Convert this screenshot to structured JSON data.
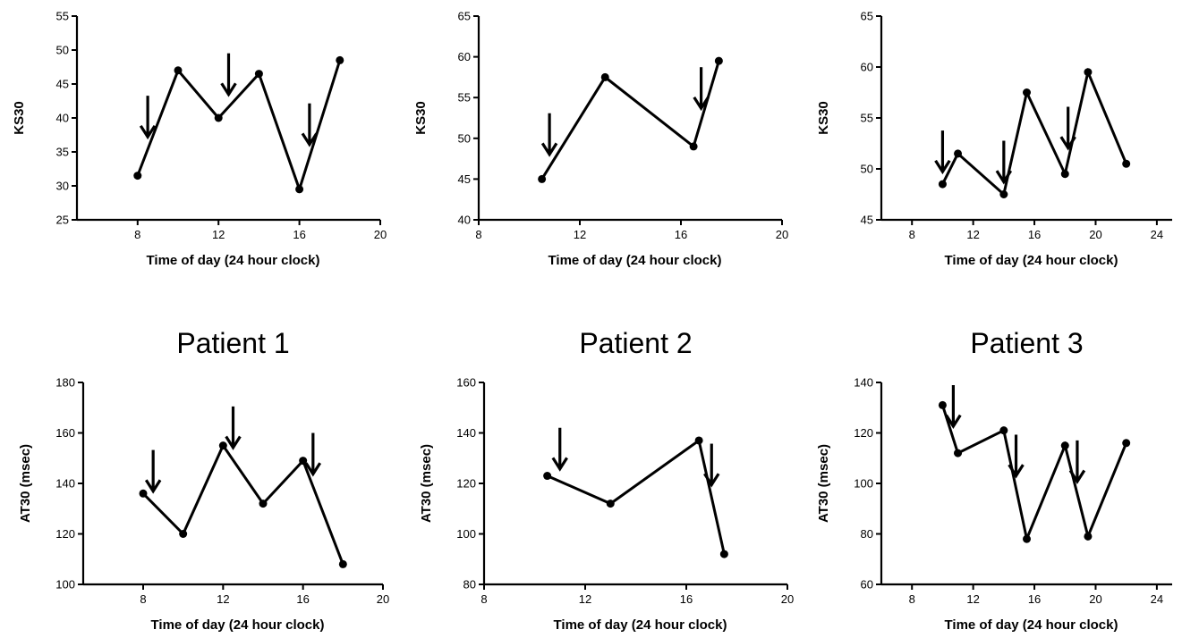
{
  "chart_data": [
    {
      "type": "line",
      "title": "",
      "xlabel": "Time of day (24 hour clock)",
      "ylabel": "KS30",
      "xlim": [
        5,
        20
      ],
      "ylim": [
        25,
        55
      ],
      "xticks": [
        8,
        12,
        16,
        20
      ],
      "yticks": [
        25,
        30,
        35,
        40,
        45,
        50,
        55
      ],
      "x": [
        8,
        10,
        12,
        14,
        16,
        18
      ],
      "y": [
        31.5,
        47,
        40,
        46.5,
        29.5,
        48.5
      ],
      "arrows_at_x": [
        8.5,
        12.5,
        16.5
      ]
    },
    {
      "type": "line",
      "title": "",
      "xlabel": "Time of day (24 hour clock)",
      "ylabel": "KS30",
      "xlim": [
        8,
        20
      ],
      "ylim": [
        40,
        65
      ],
      "xticks": [
        8,
        12,
        16,
        20
      ],
      "yticks": [
        40,
        45,
        50,
        55,
        60,
        65
      ],
      "x": [
        10.5,
        13,
        16.5,
        17.5
      ],
      "y": [
        45,
        57.5,
        49,
        59.5
      ],
      "arrows_at_x": [
        10.8,
        16.8
      ]
    },
    {
      "type": "line",
      "title": "",
      "xlabel": "Time of day (24 hour clock)",
      "ylabel": "KS30",
      "xlim": [
        6,
        25
      ],
      "ylim": [
        45,
        65
      ],
      "xticks": [
        8,
        12,
        16,
        20,
        24
      ],
      "yticks": [
        45,
        50,
        55,
        60,
        65
      ],
      "x": [
        10,
        11,
        14,
        15.5,
        18,
        19.5,
        22
      ],
      "y": [
        48.5,
        51.5,
        47.5,
        57.5,
        49.5,
        59.5,
        50.5
      ],
      "arrows_at_x": [
        10,
        14,
        18.2
      ]
    },
    {
      "type": "line",
      "title": "Patient 1",
      "xlabel": "Time of day (24 hour clock)",
      "ylabel": "AT30 (msec)",
      "xlim": [
        5,
        20
      ],
      "ylim": [
        100,
        180
      ],
      "xticks": [
        8,
        12,
        16,
        20
      ],
      "yticks": [
        100,
        120,
        140,
        160,
        180
      ],
      "x": [
        8,
        10,
        12,
        14,
        16,
        18
      ],
      "y": [
        136,
        120,
        155,
        132,
        149,
        108
      ],
      "arrows_at_x": [
        8.5,
        12.5,
        16.5
      ]
    },
    {
      "type": "line",
      "title": "Patient 2",
      "xlabel": "Time of day (24 hour clock)",
      "ylabel": "AT30 (msec)",
      "xlim": [
        8,
        20
      ],
      "ylim": [
        80,
        160
      ],
      "xticks": [
        8,
        12,
        16,
        20
      ],
      "yticks": [
        80,
        100,
        120,
        140,
        160
      ],
      "x": [
        10.5,
        13,
        16.5,
        17.5
      ],
      "y": [
        123,
        112,
        137,
        92
      ],
      "arrows_at_x": [
        11,
        17
      ]
    },
    {
      "type": "line",
      "title": "Patient 3",
      "xlabel": "Time of day (24 hour clock)",
      "ylabel": "AT30 (msec)",
      "xlim": [
        6,
        25
      ],
      "ylim": [
        60,
        140
      ],
      "xticks": [
        8,
        12,
        16,
        20,
        24
      ],
      "yticks": [
        60,
        80,
        100,
        120,
        140
      ],
      "x": [
        10,
        11,
        14,
        15.5,
        18,
        19.5,
        22
      ],
      "y": [
        131,
        112,
        121,
        78,
        115,
        79,
        116
      ],
      "arrows_at_x": [
        10.7,
        14.8,
        18.8
      ]
    }
  ]
}
